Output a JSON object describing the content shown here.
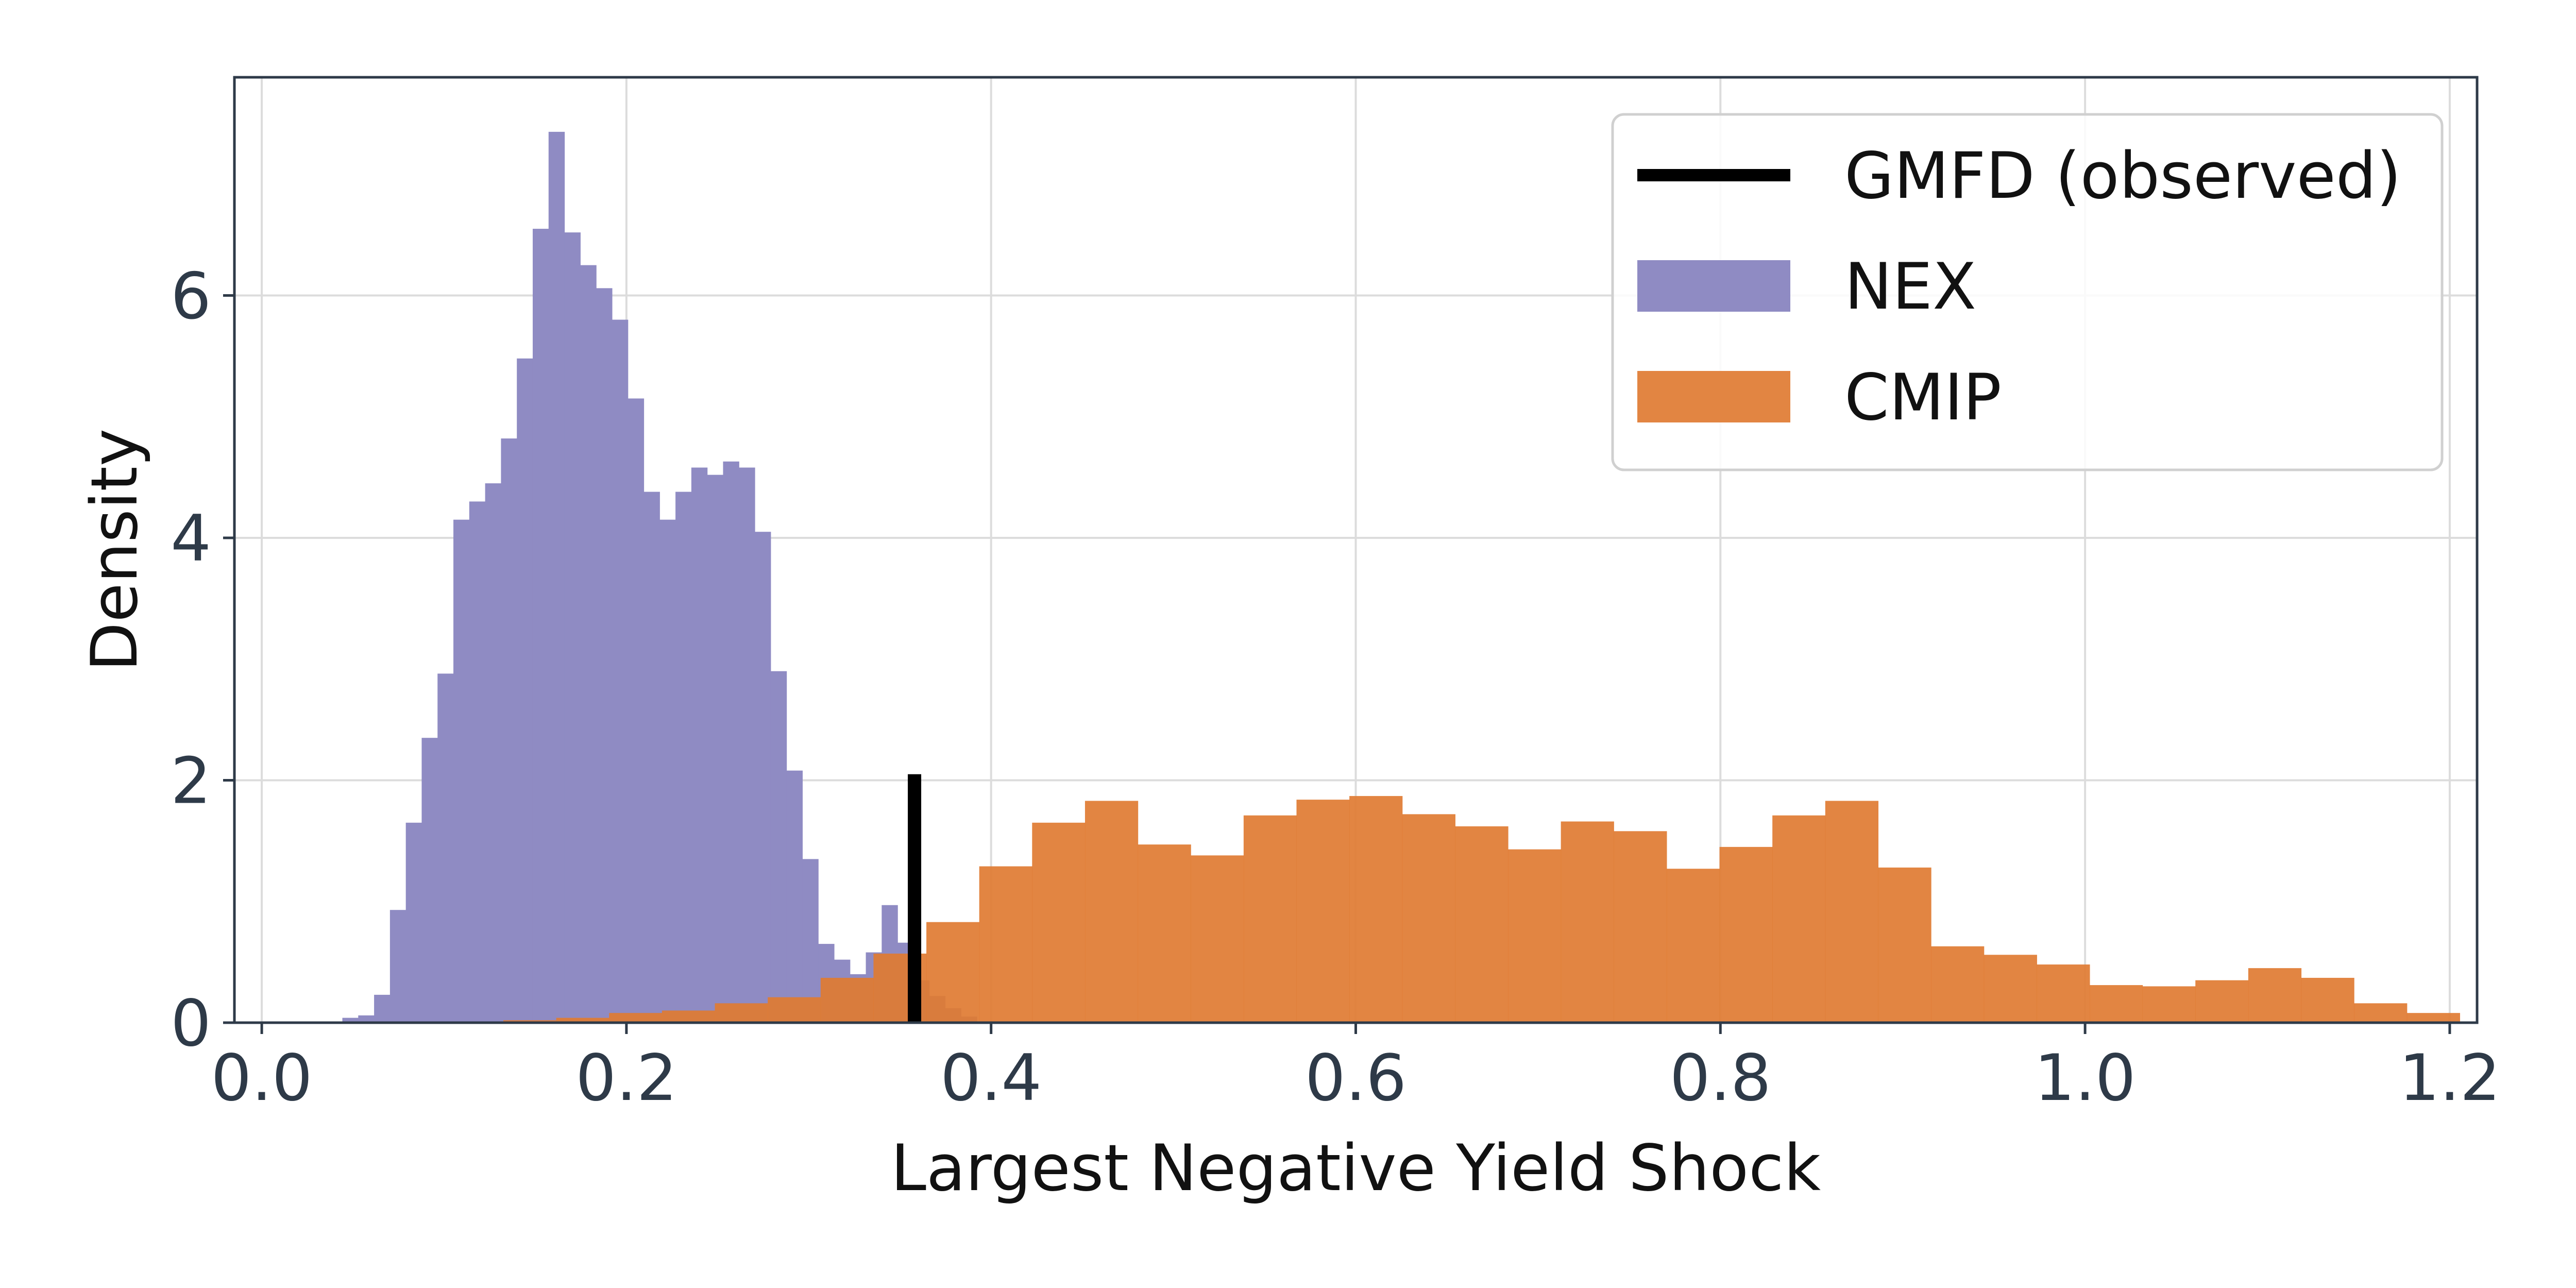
{
  "chart_data": {
    "type": "histogram",
    "xlabel": "Largest Negative Yield Shock",
    "ylabel": "Density",
    "xlim": [
      -0.015,
      1.215
    ],
    "ylim": [
      0,
      7.8
    ],
    "xticks": [
      0.0,
      0.2,
      0.4,
      0.6,
      0.8,
      1.0,
      1.2
    ],
    "xtick_labels": [
      "0.0",
      "0.2",
      "0.4",
      "0.6",
      "0.8",
      "1.0",
      "1.2"
    ],
    "yticks": [
      0,
      2,
      4,
      6
    ],
    "ytick_labels": [
      "0",
      "2",
      "4",
      "6"
    ],
    "grid": true,
    "legend_position": "top-right",
    "series": [
      {
        "name": "NEX",
        "kind": "histogram",
        "color": "#8f8bc3",
        "bin_start": 0.0355,
        "bin_width": 0.0087,
        "densities": [
          0.01,
          0.04,
          0.06,
          0.23,
          0.93,
          1.65,
          2.35,
          2.88,
          4.15,
          4.3,
          4.45,
          4.82,
          5.48,
          6.55,
          7.35,
          6.52,
          6.25,
          6.06,
          5.8,
          5.15,
          4.38,
          4.15,
          4.38,
          4.58,
          4.52,
          4.63,
          4.58,
          4.05,
          2.9,
          2.08,
          1.35,
          0.65,
          0.52,
          0.4,
          0.58,
          0.97,
          0.66,
          0.35,
          0.22,
          0.12,
          0.05
        ]
      },
      {
        "name": "CMIP",
        "kind": "histogram",
        "color": "#e07b32",
        "alpha": 0.92,
        "bin_start": 0.1325,
        "bin_width": 0.029,
        "densities": [
          0.02,
          0.04,
          0.08,
          0.1,
          0.16,
          0.21,
          0.37,
          0.57,
          0.83,
          1.29,
          1.65,
          1.83,
          1.47,
          1.38,
          1.71,
          1.84,
          1.87,
          1.72,
          1.62,
          1.43,
          1.66,
          1.58,
          1.27,
          1.45,
          1.71,
          1.83,
          1.28,
          0.63,
          0.56,
          0.48,
          0.31,
          0.3,
          0.35,
          0.45,
          0.37,
          0.16,
          0.08
        ]
      },
      {
        "name": "GMFD (observed)",
        "kind": "vline",
        "color": "#000000",
        "x": 0.358,
        "y_top": 2.05
      }
    ]
  }
}
